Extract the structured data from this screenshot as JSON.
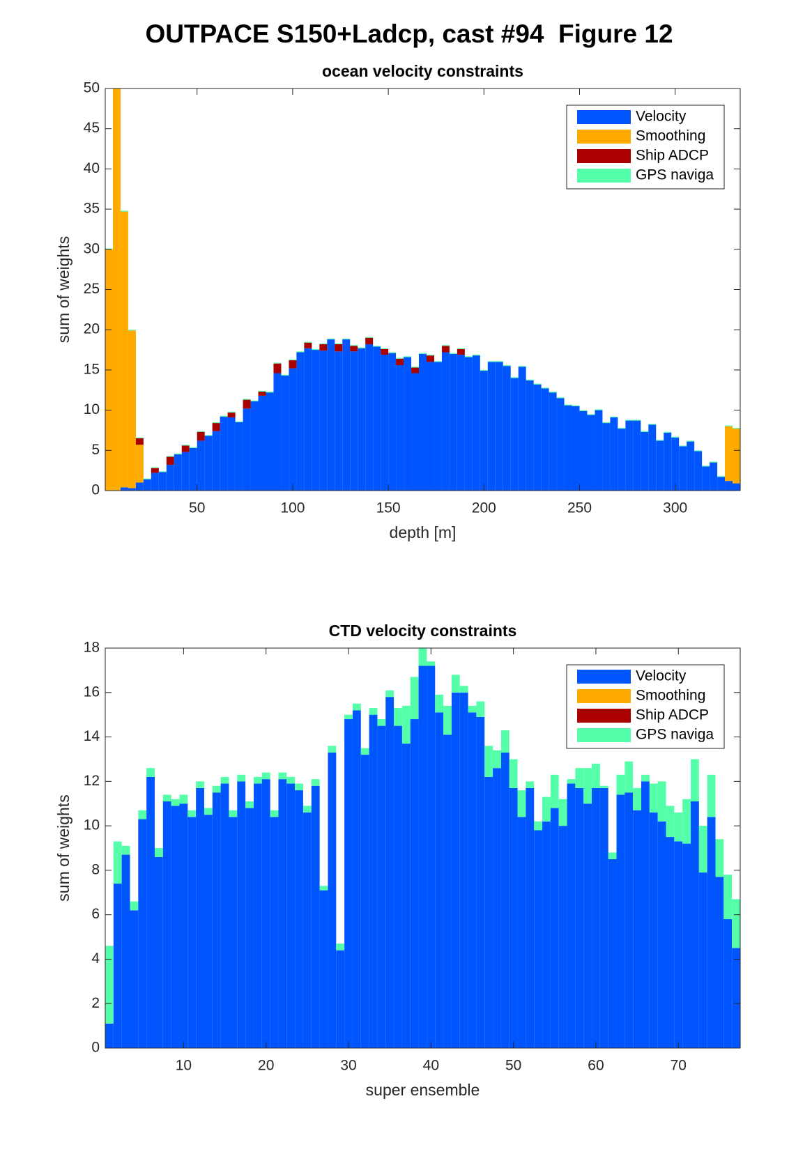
{
  "title": "OUTPACE S150+Ladcp, cast #94  Figure 12",
  "chart_data": [
    {
      "type": "bar",
      "stacked": true,
      "title": "ocean velocity constraints",
      "xlabel": "depth [m]",
      "ylabel": "sum of weights",
      "x": [
        4,
        8,
        12,
        16,
        20,
        24,
        28,
        32,
        36,
        40,
        44,
        48,
        52,
        56,
        60,
        64,
        68,
        72,
        76,
        80,
        84,
        88,
        92,
        96,
        100,
        104,
        108,
        112,
        116,
        120,
        124,
        128,
        132,
        136,
        140,
        144,
        148,
        152,
        156,
        160,
        164,
        168,
        172,
        176,
        180,
        184,
        188,
        192,
        196,
        200,
        204,
        208,
        212,
        216,
        220,
        224,
        228,
        232,
        236,
        240,
        244,
        248,
        252,
        256,
        260,
        264,
        268,
        272,
        276,
        280,
        284,
        288,
        292,
        296,
        300,
        304,
        308,
        312,
        316,
        320,
        324,
        328,
        332
      ],
      "series": [
        {
          "name": "Velocity",
          "color": "#0055ff",
          "values": [
            0,
            0,
            0.4,
            0.3,
            1.0,
            1.4,
            2.2,
            2.3,
            3.2,
            4.5,
            4.8,
            5.3,
            6.2,
            6.8,
            7.4,
            9.2,
            9.1,
            8.5,
            10.2,
            11.1,
            11.8,
            12.2,
            14.6,
            14.3,
            15.2,
            17.2,
            17.7,
            17.5,
            17.4,
            18.8,
            17.3,
            18.8,
            17.3,
            17.7,
            18.2,
            17.9,
            16.9,
            17.1,
            15.6,
            16.6,
            14.6,
            17.0,
            16.0,
            16.0,
            17.2,
            17.0,
            16.9,
            16.6,
            16.8,
            14.9,
            16.0,
            16.0,
            15.5,
            14.0,
            15.4,
            13.7,
            13.2,
            12.7,
            12.2,
            11.5,
            10.6,
            10.5,
            9.9,
            9.4,
            10.0,
            8.4,
            9.1,
            7.7,
            8.7,
            8.7,
            7.3,
            8.2,
            6.2,
            7.2,
            6.6,
            5.5,
            6.1,
            4.9,
            3.0,
            3.5,
            1.7,
            1.2,
            0.9
          ]
        },
        {
          "name": "Smoothing",
          "color": "#ffaa00",
          "values": [
            30,
            50,
            34.3,
            19.6,
            4.7,
            0,
            0,
            0,
            0,
            0,
            0,
            0,
            0,
            0,
            0,
            0,
            0,
            0,
            0,
            0,
            0,
            0,
            0,
            0,
            0,
            0,
            0,
            0,
            0,
            0,
            0,
            0,
            0,
            0,
            0,
            0,
            0,
            0,
            0,
            0,
            0,
            0,
            0,
            0,
            0,
            0,
            0,
            0,
            0,
            0,
            0,
            0,
            0,
            0,
            0,
            0,
            0,
            0,
            0,
            0,
            0,
            0,
            0,
            0,
            0,
            0,
            0,
            0,
            0,
            0,
            0,
            0,
            0,
            0,
            0,
            0,
            0,
            0,
            0,
            0,
            0,
            6.8,
            6.8
          ]
        },
        {
          "name": "Ship ADCP",
          "color": "#aa0000",
          "values": [
            0,
            0,
            0,
            0,
            0.8,
            0,
            0.6,
            0,
            1,
            0,
            0.8,
            0,
            1.1,
            0,
            1,
            0,
            0.6,
            0,
            1.1,
            0,
            0.5,
            0,
            1.2,
            0,
            1,
            0,
            0.7,
            0,
            0.8,
            0,
            0.9,
            0,
            0.7,
            0,
            0.8,
            0,
            0.7,
            0,
            0.8,
            0,
            0.7,
            0,
            0.8,
            0,
            0.8,
            0,
            0.7,
            0,
            0,
            0,
            0,
            0,
            0,
            0,
            0,
            0,
            0,
            0,
            0,
            0,
            0,
            0,
            0,
            0,
            0,
            0,
            0,
            0,
            0,
            0,
            0,
            0,
            0,
            0,
            0,
            0,
            0,
            0,
            0,
            0,
            0,
            0,
            0
          ]
        },
        {
          "name": "GPS naviga",
          "color": "#55ffaa",
          "values": [
            0.1,
            0.1,
            0.1,
            0.1,
            0.1,
            0.1,
            0.1,
            0.1,
            0.1,
            0.1,
            0.1,
            0.1,
            0.1,
            0.1,
            0.1,
            0.1,
            0.1,
            0.1,
            0.1,
            0.1,
            0.1,
            0.1,
            0.1,
            0.1,
            0.1,
            0.1,
            0.1,
            0.1,
            0.1,
            0.1,
            0.1,
            0.1,
            0.1,
            0.1,
            0.1,
            0.1,
            0.1,
            0.1,
            0.1,
            0.1,
            0.1,
            0.1,
            0.1,
            0.1,
            0.1,
            0.1,
            0.1,
            0.1,
            0.1,
            0.1,
            0.1,
            0.1,
            0.1,
            0.1,
            0.1,
            0.1,
            0.1,
            0.1,
            0.1,
            0.1,
            0.1,
            0.1,
            0.1,
            0.1,
            0.1,
            0.1,
            0.1,
            0.1,
            0.1,
            0.1,
            0.1,
            0.1,
            0.1,
            0.1,
            0.1,
            0.1,
            0.1,
            0.1,
            0.1,
            0.1,
            0.1,
            0.1,
            0.1
          ]
        }
      ],
      "xlim": [
        2,
        334
      ],
      "ylim": [
        0,
        50
      ],
      "xticks": [
        50,
        100,
        150,
        200,
        250,
        300
      ],
      "yticks": [
        0,
        5,
        10,
        15,
        20,
        25,
        30,
        35,
        40,
        45,
        50
      ],
      "legend": "upper right"
    },
    {
      "type": "bar",
      "stacked": true,
      "title": "CTD velocity constraints",
      "xlabel": "super ensemble",
      "ylabel": "sum of weights",
      "x": [
        1,
        2,
        3,
        4,
        5,
        6,
        7,
        8,
        9,
        10,
        11,
        12,
        13,
        14,
        15,
        16,
        17,
        18,
        19,
        20,
        21,
        22,
        23,
        24,
        25,
        26,
        27,
        28,
        29,
        30,
        31,
        32,
        33,
        34,
        35,
        36,
        37,
        38,
        39,
        40,
        41,
        42,
        43,
        44,
        45,
        46,
        47,
        48,
        49,
        50,
        51,
        52,
        53,
        54,
        55,
        56,
        57,
        58,
        59,
        60,
        61,
        62,
        63,
        64,
        65,
        66,
        67,
        68,
        69,
        70,
        71,
        72,
        73,
        74,
        75,
        76,
        77
      ],
      "series": [
        {
          "name": "Velocity",
          "color": "#0055ff",
          "values": [
            1.1,
            7.4,
            8.7,
            6.2,
            10.3,
            12.2,
            8.6,
            11.1,
            10.9,
            11.0,
            10.4,
            11.7,
            10.5,
            11.5,
            11.9,
            10.4,
            12.0,
            10.8,
            11.9,
            12.1,
            10.4,
            12.1,
            11.9,
            11.6,
            10.6,
            11.8,
            7.1,
            13.3,
            4.4,
            14.8,
            15.2,
            13.2,
            15.0,
            14.5,
            15.8,
            14.5,
            13.7,
            14.8,
            17.2,
            17.2,
            15.1,
            14.1,
            16.0,
            16.0,
            15.1,
            14.9,
            12.2,
            12.6,
            13.3,
            11.7,
            10.4,
            11.7,
            9.8,
            10.2,
            10.8,
            10.0,
            11.9,
            11.7,
            11.0,
            11.7,
            11.7,
            8.5,
            11.4,
            11.5,
            10.7,
            12.0,
            10.6,
            10.2,
            9.5,
            9.3,
            9.2,
            11.1,
            7.9,
            10.4,
            7.7,
            5.8,
            4.5
          ]
        },
        {
          "name": "Smoothing",
          "color": "#ffaa00",
          "values": [
            0,
            0,
            0,
            0,
            0,
            0,
            0,
            0,
            0,
            0,
            0,
            0,
            0,
            0,
            0,
            0,
            0,
            0,
            0,
            0,
            0,
            0,
            0,
            0,
            0,
            0,
            0,
            0,
            0,
            0,
            0,
            0,
            0,
            0,
            0,
            0,
            0,
            0,
            0,
            0,
            0,
            0,
            0,
            0,
            0,
            0,
            0,
            0,
            0,
            0,
            0,
            0,
            0,
            0,
            0,
            0,
            0,
            0,
            0,
            0,
            0,
            0,
            0,
            0,
            0,
            0,
            0,
            0,
            0,
            0,
            0,
            0,
            0,
            0,
            0,
            0,
            0
          ]
        },
        {
          "name": "Ship ADCP",
          "color": "#aa0000",
          "values": [
            0,
            0,
            0,
            0,
            0,
            0,
            0,
            0,
            0,
            0,
            0,
            0,
            0,
            0,
            0,
            0,
            0,
            0,
            0,
            0,
            0,
            0,
            0,
            0,
            0,
            0,
            0,
            0,
            0,
            0,
            0,
            0,
            0,
            0,
            0,
            0,
            0,
            0,
            0,
            0,
            0,
            0,
            0,
            0,
            0,
            0,
            0,
            0,
            0,
            0,
            0,
            0,
            0,
            0,
            0,
            0,
            0,
            0,
            0,
            0,
            0,
            0,
            0,
            0,
            0,
            0,
            0,
            0,
            0,
            0,
            0,
            0,
            0,
            0,
            0,
            0,
            0
          ]
        },
        {
          "name": "GPS naviga",
          "color": "#55ffaa",
          "values": [
            3.5,
            1.9,
            0.4,
            0.4,
            0.4,
            0.4,
            0.4,
            0.3,
            0.3,
            0.4,
            0.3,
            0.3,
            0.3,
            0.3,
            0.3,
            0.3,
            0.3,
            0.3,
            0.3,
            0.3,
            0.3,
            0.3,
            0.3,
            0.3,
            0.3,
            0.3,
            0.2,
            0.3,
            0.3,
            0.2,
            0.3,
            0.3,
            0.3,
            0.3,
            0.3,
            0.8,
            1.7,
            1.9,
            0.9,
            0.2,
            0.8,
            1.3,
            0.8,
            0.3,
            0.3,
            0.7,
            1.4,
            0.8,
            1.0,
            1.3,
            1.2,
            0.3,
            0.4,
            1.1,
            1.5,
            1.2,
            0.2,
            0.9,
            1.6,
            1.1,
            0.1,
            0.3,
            0.9,
            1.4,
            1.0,
            0.3,
            1.3,
            1.8,
            1.4,
            1.3,
            2.0,
            1.9,
            2.1,
            1.9,
            1.7,
            2.0,
            2.2
          ]
        }
      ],
      "xlim": [
        0.5,
        77.5
      ],
      "ylim": [
        0,
        18
      ],
      "xticks": [
        10,
        20,
        30,
        40,
        50,
        60,
        70
      ],
      "yticks": [
        0,
        2,
        4,
        6,
        8,
        10,
        12,
        14,
        16,
        18
      ],
      "legend": "upper right"
    }
  ]
}
